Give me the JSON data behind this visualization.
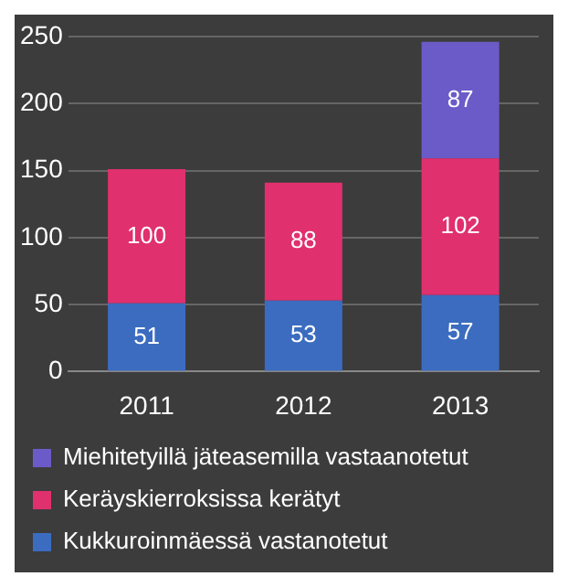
{
  "chart_data": {
    "type": "bar",
    "categories": [
      "2011",
      "2012",
      "2013"
    ],
    "stacked": true,
    "series": [
      {
        "name": "Kukkuroinmäessä vastanotetut",
        "color": "#3b6cc0",
        "values": [
          51,
          53,
          57
        ]
      },
      {
        "name": "Keräyskierroksissa kerätyt",
        "color": "#e0306e",
        "values": [
          100,
          88,
          102
        ]
      },
      {
        "name": "Miehitetyillä jäteasemilla vastaanotetut",
        "color": "#6b5bc8",
        "values": [
          null,
          null,
          87
        ]
      }
    ],
    "ylim": [
      0,
      250
    ],
    "yticks": [
      0,
      50,
      100,
      150,
      200,
      250
    ],
    "grid": "y",
    "legend": "bottom",
    "data_labels": true
  }
}
